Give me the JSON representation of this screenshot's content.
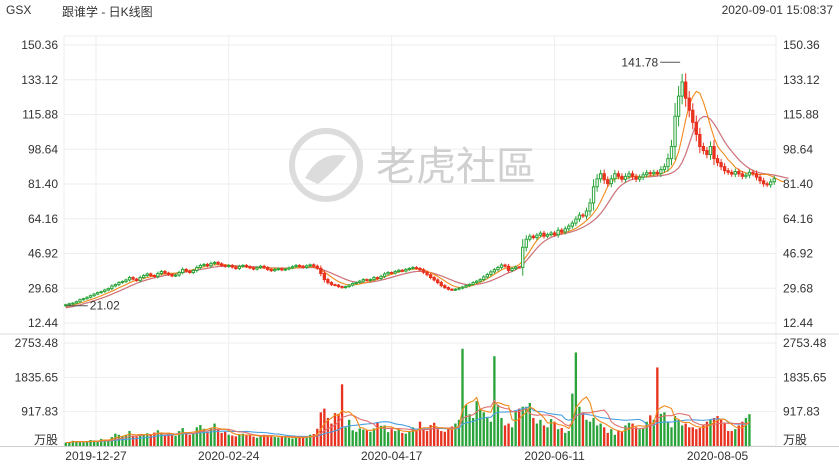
{
  "header": {
    "symbol": "GSX",
    "title": "跟谁学 - 日K线图",
    "timestamp": "2020-09-01 15:08:37"
  },
  "watermark": {
    "text": "老虎社區",
    "icon": "tiger-logo-icon"
  },
  "colors": {
    "up": "#2aa43a",
    "down": "#e8321f",
    "ma5": "#f28a1b",
    "ma10": "#e07070",
    "ma20": "#4aa0e0",
    "grid": "#eeeeee"
  },
  "chart_data": [
    {
      "type": "candlestick",
      "name": "price",
      "y_ticks": [
        "150.36",
        "133.12",
        "115.88",
        "98.64",
        "81.40",
        "64.16",
        "46.92",
        "29.68",
        "12.44"
      ],
      "ylim": [
        12.44,
        150.36
      ],
      "x_ticks": [
        "2019-12-27",
        "2020-02-24",
        "2020-04-17",
        "2020-06-11",
        "2020-08-05"
      ],
      "annotations": {
        "max_label": "141.78",
        "min_label": "21.02"
      },
      "close": [
        21.5,
        22,
        22.3,
        23,
        24,
        24.5,
        25.2,
        26,
        26.8,
        27.5,
        28,
        28.8,
        29.5,
        30.8,
        31.5,
        32.5,
        33,
        33.8,
        35,
        34.2,
        33.5,
        35,
        36,
        36.8,
        36,
        35.5,
        37,
        38,
        37.2,
        36.5,
        35.8,
        36.2,
        37.5,
        39,
        38.2,
        37.5,
        38.5,
        40,
        41,
        41.5,
        40.8,
        42,
        42.5,
        41.8,
        41,
        40.5,
        41,
        40.2,
        39.5,
        40.5,
        41,
        40.4,
        39.8,
        39.2,
        40,
        40.6,
        39.9,
        39,
        38.4,
        39,
        39.4,
        38.8,
        39.2,
        39.8,
        40.4,
        41,
        40.6,
        40,
        40.8,
        41.3,
        40.6,
        39.6,
        37,
        34,
        32.5,
        31.5,
        31.2,
        30.5,
        30,
        30.5,
        31.2,
        32,
        32.5,
        33.2,
        34,
        33.5,
        34,
        35,
        34.5,
        35.6,
        36.8,
        37.5,
        37.2,
        38,
        38.6,
        38.2,
        39,
        39.5,
        40,
        39.5,
        38.8,
        37.6,
        36.4,
        35,
        33.8,
        32.5,
        31,
        30,
        29.2,
        28.8,
        29.2,
        29.7,
        30.3,
        31,
        31.6,
        32.5,
        33.2,
        34,
        35.3,
        36.5,
        37.8,
        38.9,
        40,
        41.2,
        40.6,
        38.5,
        39.5,
        40.2,
        40,
        50,
        54,
        55.5,
        54.8,
        56,
        57,
        55.5,
        56.3,
        57.1,
        56.2,
        58.5,
        57.6,
        59.2,
        60.5,
        62,
        64,
        66,
        65.5,
        68,
        72,
        80,
        84,
        86.5,
        83.5,
        81.6,
        84,
        86.5,
        85.2,
        83.7,
        85.2,
        86.5,
        85,
        83.8,
        84.8,
        86,
        87,
        86.5,
        87.2,
        86.6,
        88.5,
        90,
        94,
        100,
        115,
        125,
        132,
        124,
        118,
        112,
        106,
        100,
        98,
        96,
        100,
        94,
        92,
        90,
        88,
        87.2,
        86.3,
        87.6,
        86.4,
        85.2,
        85.8,
        87.2,
        86.5,
        84.8,
        83,
        81.5,
        81,
        82.5,
        84
      ],
      "ma5": [
        20.5,
        20.9,
        21.3,
        21.8,
        22.3,
        22.8,
        23.4,
        24,
        24.6,
        25.3,
        26,
        26.7,
        27.4,
        28.2,
        29,
        29.9,
        30.7,
        31.5,
        32.4,
        33.1,
        33.6,
        34,
        34.5,
        35,
        35.4,
        35.7,
        36,
        36.4,
        36.8,
        37,
        37.1,
        37.2,
        37.4,
        37.8,
        38.2,
        38.5,
        38.9,
        39.4,
        39.9,
        40.3,
        40.7,
        41.1,
        41.3,
        41.4,
        41.4,
        41.3,
        41.1,
        40.8,
        40.5,
        40.4,
        40.3,
        40.2,
        40,
        39.9,
        39.8,
        39.8,
        39.8,
        39.8,
        39.7,
        39.6,
        39.5,
        39.4,
        39.4,
        39.5,
        39.6,
        39.8,
        40,
        40.2,
        40.3,
        40.4,
        40.2,
        39.8,
        39,
        37.8,
        36.5,
        35.2,
        34,
        33,
        32.2,
        31.6,
        31.3,
        31.3,
        31.5,
        31.8,
        32.2,
        32.6,
        33.1,
        33.6,
        34.1,
        34.7,
        35.3,
        36,
        36.6,
        37.2,
        37.7,
        38.1,
        38.5,
        38.9,
        39.2,
        39.3,
        39.2,
        38.8,
        38.2,
        37.4,
        36.5,
        35.5,
        34.4,
        33.3,
        32.2,
        31.2,
        30.5,
        30.1,
        30,
        30.2,
        30.6,
        31.2,
        31.9,
        32.7,
        33.5,
        34.5,
        35.5,
        36.6,
        37.7,
        38.8,
        39.6,
        40,
        40.2,
        40.4,
        41.4,
        43.2,
        45.5,
        48,
        51,
        53.4,
        55.2,
        55.9,
        56.1,
        56.2,
        56.4,
        56.7,
        57,
        57.4,
        57.9,
        58.6,
        59.4,
        60.6,
        61.8,
        63.3,
        64.9,
        66.9,
        69.4,
        72.7,
        76.4,
        80.2,
        82.3,
        83.9,
        84.5,
        84.4,
        84.2,
        84.5,
        85,
        85.3,
        85.1,
        84.9,
        85.1,
        85.5,
        85.8,
        86.1,
        86.5,
        87.1,
        88.1,
        89.6,
        92.4,
        97.3,
        104.8,
        113.2,
        120.5,
        124.7,
        127.3,
        126.5,
        122,
        116.5,
        110.1,
        104.5,
        100.1,
        97.8,
        95.9,
        93.4,
        91.7,
        89.7,
        88.5,
        87.5,
        86.9,
        86.5,
        86.3,
        86.1,
        86.1,
        86.2,
        86.1,
        85.5,
        84.6,
        83.7,
        82.8,
        82.4
      ],
      "ma10": [
        20,
        20.3,
        20.6,
        21,
        21.4,
        21.9,
        22.4,
        22.9,
        23.5,
        24.1,
        24.7,
        25.3,
        26,
        26.7,
        27.5,
        28.2,
        29,
        29.8,
        30.6,
        31.4,
        32.1,
        32.8,
        33.4,
        33.9,
        34.4,
        34.8,
        35.2,
        35.6,
        36,
        36.3,
        36.6,
        36.9,
        37.2,
        37.5,
        37.8,
        38.1,
        38.4,
        38.7,
        39,
        39.3,
        39.6,
        39.9,
        40.2,
        40.4,
        40.6,
        40.7,
        40.8,
        40.8,
        40.8,
        40.7,
        40.6,
        40.5,
        40.4,
        40.3,
        40.2,
        40.1,
        40,
        39.9,
        39.8,
        39.8,
        39.7,
        39.7,
        39.7,
        39.7,
        39.7,
        39.8,
        39.8,
        39.9,
        39.9,
        40,
        39.9,
        39.6,
        39.2,
        38.6,
        37.9,
        37.2,
        36.4,
        35.6,
        34.8,
        34.1,
        33.5,
        33,
        32.7,
        32.5,
        32.4,
        32.5,
        32.7,
        33,
        33.3,
        33.7,
        34.1,
        34.6,
        35.1,
        35.6,
        36.1,
        36.6,
        37,
        37.4,
        37.8,
        38,
        38.1,
        38,
        37.8,
        37.5,
        37,
        36.4,
        35.8,
        35.1,
        34.4,
        33.7,
        33,
        32.4,
        31.9,
        31.6,
        31.4,
        31.4,
        31.6,
        31.9,
        32.3,
        32.8,
        33.4,
        34.1,
        34.9,
        35.7,
        36.6,
        37.4,
        38,
        38.8,
        39.9,
        41.4,
        43.3,
        45.4,
        47.5,
        49.6,
        51.4,
        52.9,
        54,
        54.9,
        55.6,
        56.1,
        56.5,
        56.9,
        57.3,
        57.8,
        58.4,
        59.1,
        59.9,
        60.9,
        62,
        63.3,
        64.9,
        66.8,
        69.1,
        71.7,
        74.5,
        77.2,
        79.4,
        81,
        82.2,
        83.1,
        83.7,
        84.2,
        84.6,
        84.8,
        84.9,
        85,
        85.1,
        85.3,
        85.5,
        85.8,
        86.2,
        86.8,
        87.8,
        89.4,
        92.1,
        96.2,
        101.3,
        106.6,
        110.8,
        113.6,
        114.9,
        114.8,
        113.5,
        111.3,
        108.5,
        105.4,
        102.4,
        99.8,
        97.6,
        95.5,
        93.5,
        91.8,
        90.3,
        89.1,
        88.1,
        87.4,
        86.9,
        86.5,
        86.3,
        86.1,
        85.8,
        85.4,
        85,
        84.6,
        84.3
      ]
    },
    {
      "type": "bar",
      "name": "volume",
      "unit_label": "万股",
      "y_ticks": [
        "2753.48",
        "1835.65",
        "917.83"
      ],
      "ylim": [
        0,
        2753.48
      ],
      "values": [
        90,
        105,
        140,
        130,
        110,
        95,
        120,
        160,
        150,
        130,
        190,
        170,
        160,
        240,
        330,
        300,
        260,
        300,
        400,
        280,
        250,
        320,
        290,
        340,
        300,
        360,
        420,
        330,
        290,
        320,
        300,
        270,
        400,
        480,
        350,
        300,
        330,
        500,
        560,
        460,
        380,
        480,
        600,
        450,
        350,
        380,
        300,
        280,
        260,
        300,
        330,
        300,
        280,
        250,
        220,
        260,
        300,
        280,
        250,
        240,
        230,
        260,
        240,
        220,
        200,
        230,
        260,
        220,
        250,
        300,
        320,
        460,
        900,
        1000,
        750,
        600,
        880,
        860,
        1650,
        500,
        700,
        420,
        380,
        470,
        440,
        420,
        380,
        470,
        640,
        540,
        550,
        370,
        450,
        400,
        440,
        350,
        330,
        400,
        500,
        420,
        650,
        460,
        400,
        560,
        620,
        450,
        400,
        380,
        460,
        520,
        600,
        700,
        2600,
        1100,
        850,
        750,
        1200,
        1000,
        900,
        750,
        650,
        2400,
        1100,
        750,
        550,
        600,
        500,
        950,
        1000,
        1050,
        1050,
        1150,
        750,
        600,
        700,
        550,
        500,
        720,
        650,
        450,
        480,
        350,
        400,
        1400,
        2500,
        1050,
        900,
        700,
        650,
        750,
        550,
        600,
        500,
        350,
        450,
        300,
        420,
        380,
        550,
        620,
        600,
        500,
        450,
        480,
        650,
        820,
        700,
        2100,
        860,
        900,
        650,
        500,
        800,
        700,
        550,
        600,
        500,
        500,
        450,
        480,
        550,
        650,
        700,
        750,
        800,
        700,
        600,
        400,
        400,
        450,
        550,
        650,
        750,
        850
      ]
    }
  ]
}
